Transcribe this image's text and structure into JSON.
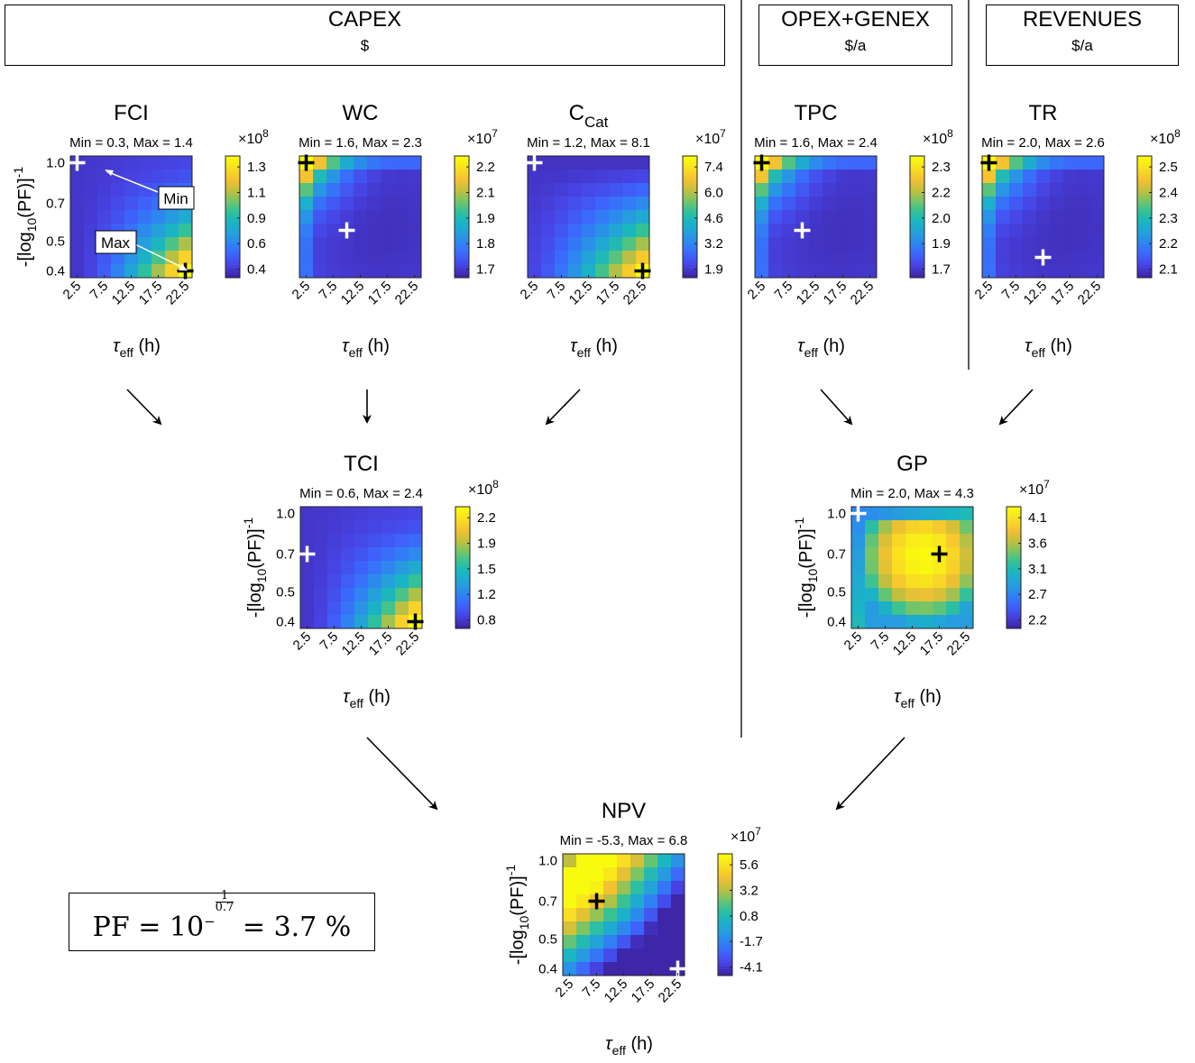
{
  "categories": [
    {
      "title": "CAPEX",
      "unit": "$"
    },
    {
      "title": "OPEX+GENEX",
      "unit": "$/a"
    },
    {
      "title": "REVENUES",
      "unit": "$/a"
    }
  ],
  "formula": {
    "lhs": "PF",
    "base": "10",
    "exp_sign": "−",
    "exp_num": "1",
    "exp_den": "0.7",
    "result": "3.7 %"
  },
  "axis_labels": {
    "x_label_main": "τ",
    "x_label_sub": "eff",
    "x_label_unit": " (h)",
    "y_label_pre": "-[log",
    "y_label_sub": "10",
    "y_label_mid": "(PF)]",
    "y_label_sup": "-1"
  },
  "annotations": {
    "min_label": "Min",
    "max_label": "Max"
  },
  "colors": {
    "parula": [
      "#3e26a8",
      "#4743e3",
      "#3d64fd",
      "#2f84f2",
      "#25a0db",
      "#19b5c4",
      "#33c198",
      "#7ac565",
      "#c6bf3c",
      "#f5c231",
      "#f9e021",
      "#f9fb0e"
    ],
    "min_marker": "#ffffff",
    "max_marker": "#000000"
  },
  "chart_data": [
    {
      "id": "FCI",
      "type": "heatmap",
      "title": "FCI",
      "title_sub": "",
      "range_text": "Min = 0.3, Max = 1.4",
      "x_ticks": [
        "2.5",
        "7.5",
        "12.5",
        "17.5",
        "22.5"
      ],
      "y_ticks": [
        "1.0",
        "0.7",
        "0.5",
        "0.4"
      ],
      "cb_ticks": [
        "1.3",
        "1.1",
        "0.9",
        "0.6",
        "0.4"
      ],
      "cb_exp_base": "×10",
      "cb_exp": "8",
      "min_cell": [
        0,
        0
      ],
      "max_cell": [
        8,
        8
      ],
      "pattern": "corner",
      "cmin": 0.3,
      "cmax": 1.4,
      "show_axis_labels": true,
      "annotated": true
    },
    {
      "id": "WC",
      "type": "heatmap",
      "title": "WC",
      "title_sub": "",
      "range_text": "Min = 1.6, Max = 2.3",
      "x_ticks": [
        "2.5",
        "7.5",
        "12.5",
        "17.5",
        "22.5"
      ],
      "y_ticks": [],
      "cb_ticks": [
        "2.2",
        "2.1",
        "1.9",
        "1.8",
        "1.7"
      ],
      "cb_exp_base": "×10",
      "cb_exp": "7",
      "min_cell": [
        3,
        5
      ],
      "max_cell": [
        0,
        0
      ],
      "pattern": "bowl",
      "cmin": 1.6,
      "cmax": 2.3,
      "show_axis_labels": false
    },
    {
      "id": "CCat",
      "type": "heatmap",
      "title": "C",
      "title_sub": "Cat",
      "range_text": "Min = 1.2, Max = 8.1",
      "x_ticks": [
        "2.5",
        "7.5",
        "12.5",
        "17.5",
        "22.5"
      ],
      "y_ticks": [],
      "cb_ticks": [
        "7.4",
        "6.0",
        "4.6",
        "3.2",
        "1.9"
      ],
      "cb_exp_base": "×10",
      "cb_exp": "7",
      "min_cell": [
        0,
        0
      ],
      "max_cell": [
        8,
        8
      ],
      "pattern": "corner_soft",
      "cmin": 1.2,
      "cmax": 8.1,
      "show_axis_labels": false
    },
    {
      "id": "TPC",
      "type": "heatmap",
      "title": "TPC",
      "title_sub": "",
      "range_text": "Min = 1.6, Max = 2.4",
      "x_ticks": [
        "2.5",
        "7.5",
        "12.5",
        "17.5",
        "22.5"
      ],
      "y_ticks": [],
      "cb_ticks": [
        "2.3",
        "2.2",
        "2.0",
        "1.9",
        "1.7"
      ],
      "cb_exp_base": "×10",
      "cb_exp": "8",
      "min_cell": [
        3,
        5
      ],
      "max_cell": [
        0,
        0
      ],
      "pattern": "bowl",
      "cmin": 1.6,
      "cmax": 2.4,
      "show_axis_labels": false
    },
    {
      "id": "TR",
      "type": "heatmap",
      "title": "TR",
      "title_sub": "",
      "range_text": "Min = 2.0, Max = 2.6",
      "x_ticks": [
        "2.5",
        "7.5",
        "12.5",
        "17.5",
        "22.5"
      ],
      "y_ticks": [],
      "cb_ticks": [
        "2.5",
        "2.4",
        "2.3",
        "2.2",
        "2.1"
      ],
      "cb_exp_base": "×10",
      "cb_exp": "8",
      "min_cell": [
        4,
        7
      ],
      "max_cell": [
        0,
        0
      ],
      "pattern": "bowl",
      "cmin": 2.0,
      "cmax": 2.6,
      "show_axis_labels": false
    },
    {
      "id": "TCI",
      "type": "heatmap",
      "title": "TCI",
      "title_sub": "",
      "range_text": "Min = 0.6, Max = 2.4",
      "x_ticks": [
        "2.5",
        "7.5",
        "12.5",
        "17.5",
        "22.5"
      ],
      "y_ticks": [
        "1.0",
        "0.7",
        "0.5",
        "0.4"
      ],
      "cb_ticks": [
        "2.2",
        "1.9",
        "1.5",
        "1.2",
        "0.8"
      ],
      "cb_exp_base": "×10",
      "cb_exp": "8",
      "min_cell": [
        0,
        3
      ],
      "max_cell": [
        8,
        8
      ],
      "pattern": "corner",
      "cmin": 0.6,
      "cmax": 2.4,
      "show_axis_labels": true
    },
    {
      "id": "GP",
      "type": "heatmap",
      "title": "GP",
      "title_sub": "",
      "range_text": "Min = 2.0, Max = 4.3",
      "x_ticks": [
        "2.5",
        "7.5",
        "12.5",
        "17.5",
        "22.5"
      ],
      "y_ticks": [
        "1.0",
        "0.7",
        "0.5",
        "0.4"
      ],
      "cb_ticks": [
        "4.1",
        "3.6",
        "3.1",
        "2.7",
        "2.2"
      ],
      "cb_exp_base": "×10",
      "cb_exp": "7",
      "min_cell": [
        0,
        0
      ],
      "max_cell": [
        6,
        3
      ],
      "pattern": "dome",
      "cmin": 2.0,
      "cmax": 4.3,
      "show_axis_labels": true
    },
    {
      "id": "NPV",
      "type": "heatmap",
      "title": "NPV",
      "title_sub": "",
      "range_text": "Min = -5.3, Max = 6.8",
      "x_ticks": [
        "2.5",
        "7.5",
        "12.5",
        "17.5",
        "22.5"
      ],
      "y_ticks": [
        "1.0",
        "0.7",
        "0.5",
        "0.4"
      ],
      "cb_ticks": [
        "5.6",
        "3.2",
        "0.8",
        "-1.7",
        "-4.1"
      ],
      "cb_exp_base": "×10",
      "cb_exp": "7",
      "min_cell": [
        8,
        8
      ],
      "max_cell": [
        2,
        3
      ],
      "pattern": "diag",
      "cmin": -5.3,
      "cmax": 6.8,
      "show_axis_labels": true
    }
  ]
}
